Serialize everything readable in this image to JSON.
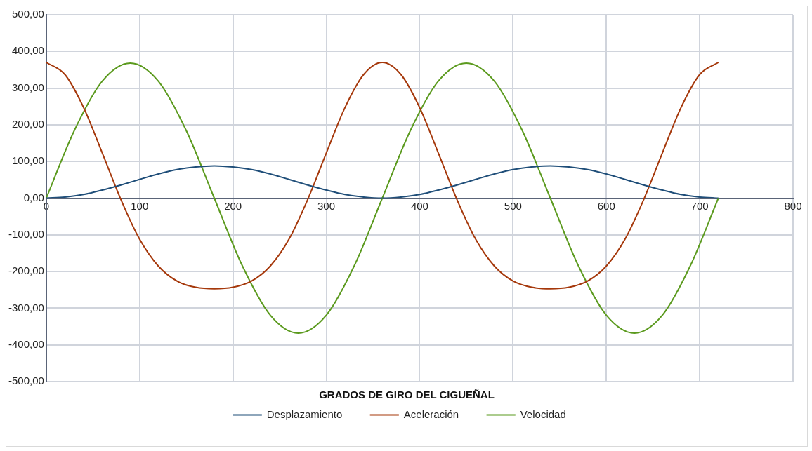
{
  "chart_data": {
    "type": "line",
    "xlabel": "GRADOS DE GIRO DEL CIGUEÑAL",
    "x": [
      0,
      20,
      40,
      60,
      80,
      100,
      120,
      140,
      160,
      180,
      200,
      220,
      240,
      260,
      280,
      300,
      320,
      340,
      360,
      380,
      400,
      420,
      440,
      460,
      480,
      500,
      520,
      540,
      560,
      580,
      600,
      620,
      640,
      660,
      680,
      700,
      720
    ],
    "series": [
      {
        "name": "Desplazamiento",
        "color": "#1f4e79",
        "values": [
          0,
          3,
          10,
          22,
          36,
          51,
          66,
          78,
          85,
          88,
          85,
          78,
          66,
          51,
          36,
          22,
          10,
          3,
          0,
          3,
          10,
          22,
          36,
          51,
          66,
          78,
          85,
          88,
          85,
          78,
          66,
          51,
          36,
          22,
          10,
          3,
          0
        ]
      },
      {
        "name": "Aceleración",
        "color": "#a5380b",
        "values": [
          370,
          337,
          247,
          123,
          -4,
          -112,
          -185,
          -226,
          -243,
          -247,
          -243,
          -226,
          -185,
          -112,
          -4,
          123,
          247,
          337,
          370,
          337,
          247,
          123,
          -4,
          -112,
          -185,
          -226,
          -243,
          -247,
          -243,
          -226,
          -185,
          -112,
          -4,
          123,
          247,
          337,
          370
        ]
      },
      {
        "name": "Velocidad",
        "color": "#5b9a1e",
        "x": [
          0,
          30,
          60,
          90,
          120,
          150,
          180,
          210,
          240,
          270,
          300,
          330,
          360,
          390,
          420,
          450,
          480,
          510,
          540,
          570,
          600,
          630,
          660,
          690,
          720
        ],
        "values": [
          0,
          184,
          319,
          368,
          319,
          184,
          0,
          -184,
          -319,
          -368,
          -319,
          -184,
          0,
          184,
          319,
          368,
          319,
          184,
          0,
          -184,
          -319,
          -368,
          -319,
          -184,
          0
        ]
      }
    ],
    "xlim": [
      0,
      800
    ],
    "xticks": [
      0,
      100,
      200,
      300,
      400,
      500,
      600,
      700,
      800
    ],
    "ylim": [
      -500,
      500
    ],
    "yticks": [
      {
        "value": -500,
        "label": "-500,00"
      },
      {
        "value": -400,
        "label": "-400,00"
      },
      {
        "value": -300,
        "label": "-300,00"
      },
      {
        "value": -200,
        "label": "-200,00"
      },
      {
        "value": -100,
        "label": "-100,00"
      },
      {
        "value": 0,
        "label": "0,00"
      },
      {
        "value": 100,
        "label": "100,00"
      },
      {
        "value": 200,
        "label": "200,00"
      },
      {
        "value": 300,
        "label": "300,00"
      },
      {
        "value": 400,
        "label": "400,00"
      },
      {
        "value": 500,
        "label": "500,00"
      }
    ],
    "grid": true,
    "legend": "bottom",
    "marker": "none",
    "line_style": "solid"
  }
}
